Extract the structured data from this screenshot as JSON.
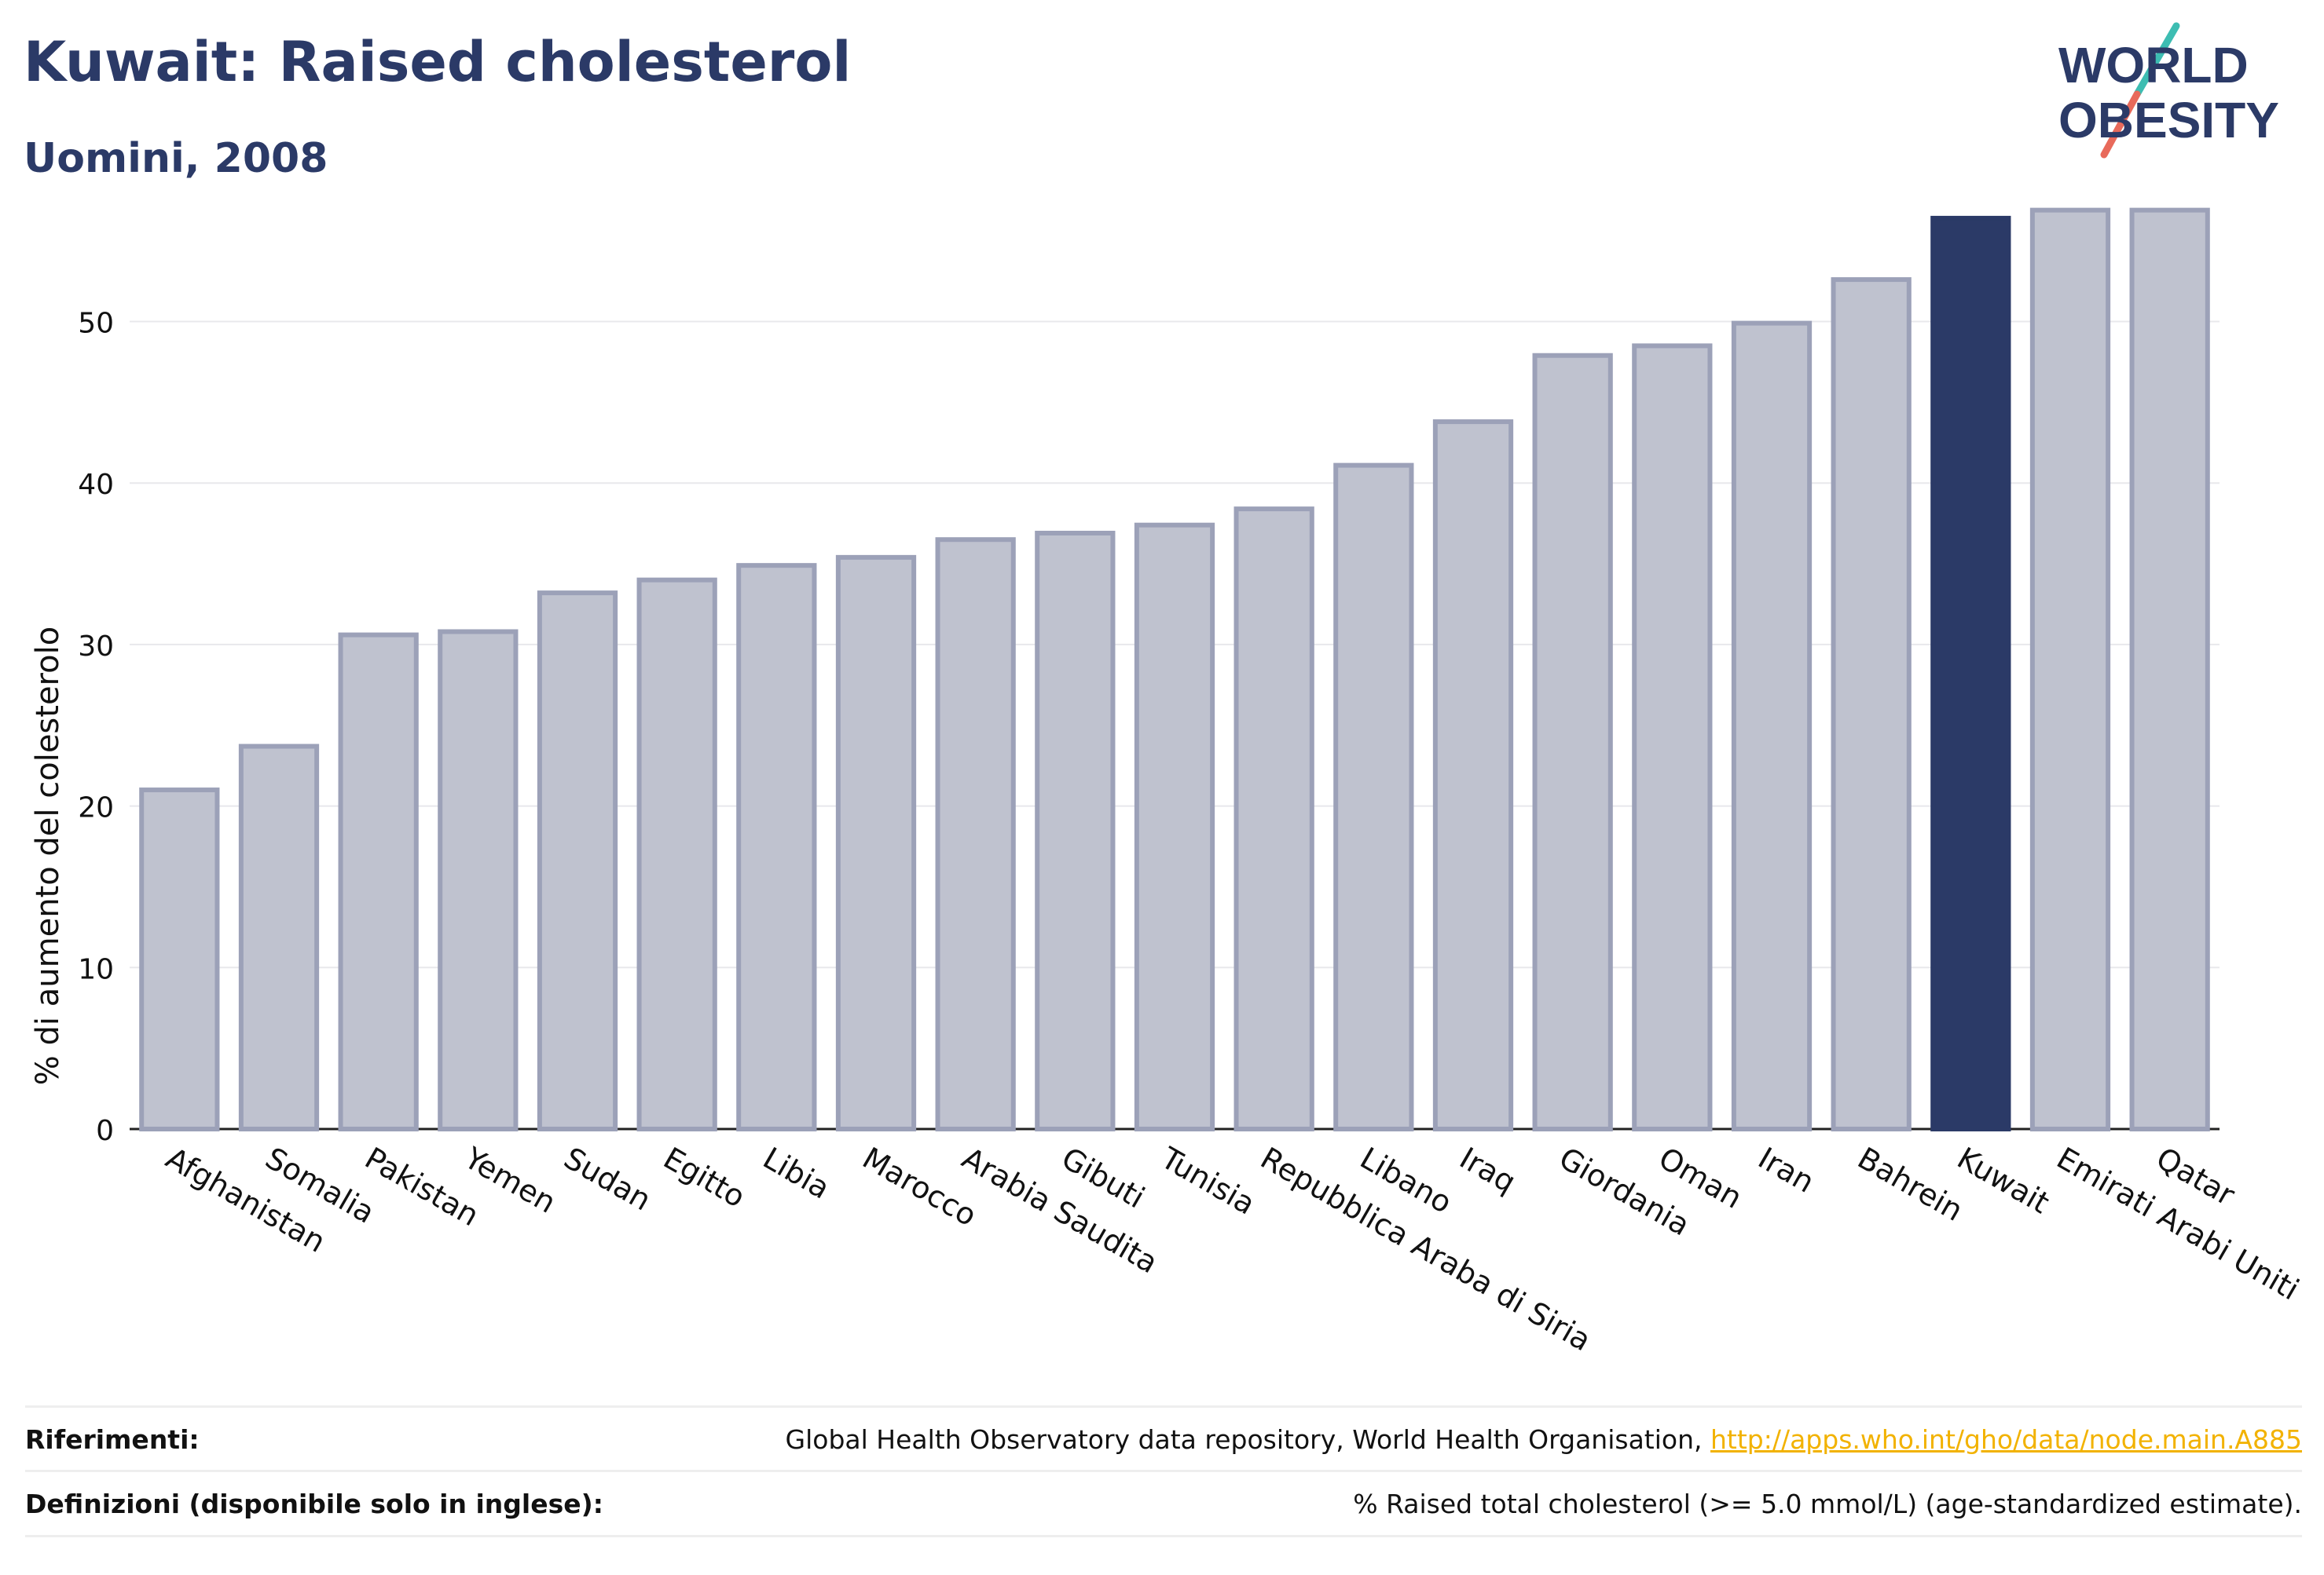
{
  "header": {
    "title": "Kuwait: Raised cholesterol",
    "subtitle": "Uomini, 2008"
  },
  "logo": {
    "line1": "WORLD",
    "line2": "OBESITY",
    "icon": "world-obesity-logo"
  },
  "chart_data": {
    "type": "bar",
    "ylabel": "% di aumento del colesterolo",
    "xlabel": "",
    "ylim": [
      0,
      58
    ],
    "yticks": [
      0,
      10,
      20,
      30,
      40,
      50
    ],
    "grid": true,
    "categories": [
      "Afghanistan",
      "Somalia",
      "Pakistan",
      "Yemen",
      "Sudan",
      "Egitto",
      "Libia",
      "Marocco",
      "Arabia Saudita",
      "Gibuti",
      "Tunisia",
      "Repubblica Araba di Siria",
      "Libano",
      "Iraq",
      "Giordania",
      "Oman",
      "Iran",
      "Bahrein",
      "Kuwait",
      "Emirati Arabi Uniti",
      "Qatar"
    ],
    "values": [
      21.0,
      23.7,
      30.6,
      30.8,
      33.2,
      34.0,
      34.9,
      35.4,
      36.5,
      36.9,
      37.4,
      38.4,
      41.1,
      43.8,
      47.9,
      48.5,
      49.9,
      52.6,
      56.4,
      56.9,
      56.9
    ],
    "highlight": "Kuwait",
    "colors": {
      "bar": "#bfc2cf",
      "bar_border": "#9ca1b8",
      "highlight": "#2b3a67"
    }
  },
  "footer": {
    "references_label": "Riferimenti:",
    "references_text": "Global Health Observatory data repository, World Health Organisation, ",
    "references_link": "http://apps.who.int/gho/data/node.main.A885",
    "definitions_label": "Definizioni (disponibile solo in inglese):",
    "definitions_text": "% Raised total cholesterol (>= 5.0 mmol/L) (age-standardized estimate)."
  }
}
